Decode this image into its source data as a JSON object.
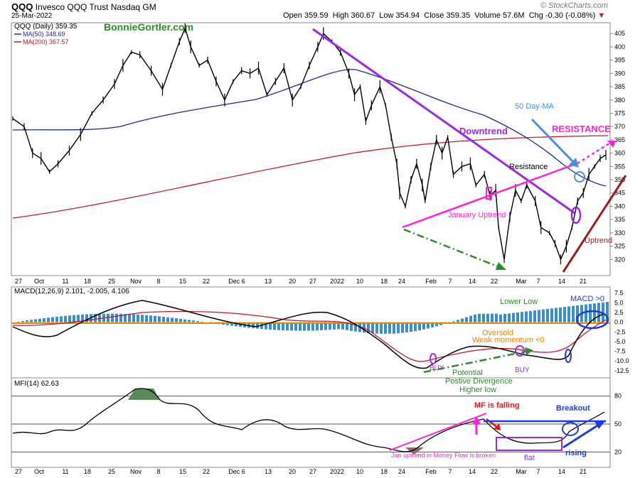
{
  "header": {
    "symbol": "QQQ",
    "name": "Invesco QQQ Trust",
    "exchange": "Nasdaq GM",
    "date": "25-Mar-2022",
    "open_label": "Open",
    "open": "359.59",
    "high_label": "High",
    "high": "360.67",
    "low_label": "Low",
    "low": "354.94",
    "close_label": "Close",
    "close": "359.35",
    "volume_label": "Volume",
    "volume": "57.6M",
    "chg_label": "Chg",
    "chg": "-0.30 (-0.08%)",
    "chg_arrow": "▼",
    "logo": "© StockCharts.com"
  },
  "chart_data": [
    {
      "type": "line",
      "title": "QQQ (Daily) 359.35",
      "watermark": "BonnieGortler.com",
      "legend": [
        {
          "name": "MA(50) 348.69",
          "color": "#1f2a8a"
        },
        {
          "name": "MA(200) 367.57",
          "color": "#c0192a"
        }
      ],
      "ylim": [
        315,
        408
      ],
      "yticks": [
        320,
        325,
        330,
        335,
        340,
        345,
        350,
        355,
        360,
        365,
        370,
        375,
        380,
        385,
        390,
        395,
        400,
        405
      ],
      "x_labels": [
        "27",
        "Oct",
        "11",
        "18",
        "25",
        "Nov",
        "8",
        "15",
        "22",
        "Dec 6",
        "13",
        "20",
        "27",
        "2022",
        "10",
        "18",
        "24",
        "Feb",
        "7",
        "14",
        "22",
        "Mar",
        "7",
        "14",
        "21"
      ],
      "price_path": [
        [
          0,
          373
        ],
        [
          8,
          370
        ],
        [
          14,
          360
        ],
        [
          20,
          358
        ],
        [
          26,
          353
        ],
        [
          32,
          356
        ],
        [
          40,
          361
        ],
        [
          48,
          367
        ],
        [
          56,
          375
        ],
        [
          64,
          380
        ],
        [
          72,
          386
        ],
        [
          78,
          393
        ],
        [
          84,
          398
        ],
        [
          90,
          397
        ],
        [
          98,
          391
        ],
        [
          106,
          384
        ],
        [
          112,
          393
        ],
        [
          118,
          402
        ],
        [
          122,
          407
        ],
        [
          126,
          400
        ],
        [
          132,
          393
        ],
        [
          138,
          395
        ],
        [
          144,
          387
        ],
        [
          150,
          380
        ],
        [
          156,
          387
        ],
        [
          162,
          391
        ],
        [
          168,
          390
        ],
        [
          174,
          392
        ],
        [
          180,
          382
        ],
        [
          186,
          387
        ],
        [
          192,
          392
        ],
        [
          198,
          380
        ],
        [
          204,
          385
        ],
        [
          210,
          393
        ],
        [
          216,
          400
        ],
        [
          220,
          405
        ],
        [
          226,
          402
        ],
        [
          232,
          398
        ],
        [
          238,
          390
        ],
        [
          242,
          382
        ],
        [
          246,
          385
        ],
        [
          250,
          372
        ],
        [
          254,
          378
        ],
        [
          260,
          385
        ],
        [
          264,
          378
        ],
        [
          268,
          366
        ],
        [
          272,
          356
        ],
        [
          274,
          345
        ],
        [
          278,
          340
        ],
        [
          282,
          350
        ],
        [
          286,
          356
        ],
        [
          290,
          348
        ],
        [
          292,
          342
        ],
        [
          296,
          355
        ],
        [
          300,
          365
        ],
        [
          304,
          360
        ],
        [
          308,
          366
        ],
        [
          312,
          352
        ],
        [
          318,
          355
        ],
        [
          324,
          356
        ],
        [
          328,
          348
        ],
        [
          334,
          352
        ],
        [
          338,
          344
        ],
        [
          342,
          346
        ],
        [
          344,
          332
        ],
        [
          348,
          320
        ],
        [
          352,
          336
        ],
        [
          356,
          346
        ],
        [
          360,
          342
        ],
        [
          364,
          348
        ],
        [
          370,
          342
        ],
        [
          374,
          332
        ],
        [
          380,
          330
        ],
        [
          384,
          326
        ],
        [
          388,
          320
        ],
        [
          392,
          325
        ],
        [
          396,
          332
        ],
        [
          400,
          342
        ],
        [
          404,
          345
        ],
        [
          408,
          352
        ],
        [
          412,
          355
        ],
        [
          416,
          358
        ],
        [
          420,
          359.35
        ]
      ],
      "annotations": [
        "Downtrend",
        "RESISTANCE",
        "50 Day-MA",
        "Resistance",
        "January Uptrend",
        "Uptrend"
      ]
    },
    {
      "type": "bar",
      "title": "MACD(12,26,9) 2.101, -2.005, 4.106",
      "legend": [
        {
          "name": "MACD(12,26,9)",
          "value": "2.101",
          "color": "#000000"
        },
        {
          "name": "signal",
          "value": "-2.005",
          "color": "#c0192a"
        },
        {
          "name": "histogram",
          "value": "4.106",
          "color": "#3b8ec7"
        }
      ],
      "ylim": [
        -14,
        8
      ],
      "yticks": [
        7.5,
        5.0,
        2.5,
        0.0,
        -2.5,
        -5.0,
        -7.5,
        -10.0,
        -12.5
      ],
      "annotations": [
        "Lower Low",
        "MACD >0",
        "Oversold",
        "Weak momentum <0",
        "BUY",
        "BUY",
        "Potential",
        "Postive Divergence",
        "Higher low"
      ]
    },
    {
      "type": "line",
      "title": "MFI(14) 62.63",
      "ylim": [
        5,
        95
      ],
      "yticks": [
        80,
        50,
        20
      ],
      "x_labels": [
        "27",
        "Oct",
        "11",
        "18",
        "25",
        "Nov",
        "8",
        "15",
        "22",
        "Dec 6",
        "13",
        "20",
        "27",
        "2022",
        "10",
        "18",
        "24",
        "Feb",
        "7",
        "14",
        "22",
        "Mar",
        "7",
        "14",
        "21"
      ],
      "annotations": [
        "MF is falling",
        "Breakout",
        "Jan uptrend in Money Flow is broken",
        "flat",
        "rising"
      ]
    }
  ]
}
